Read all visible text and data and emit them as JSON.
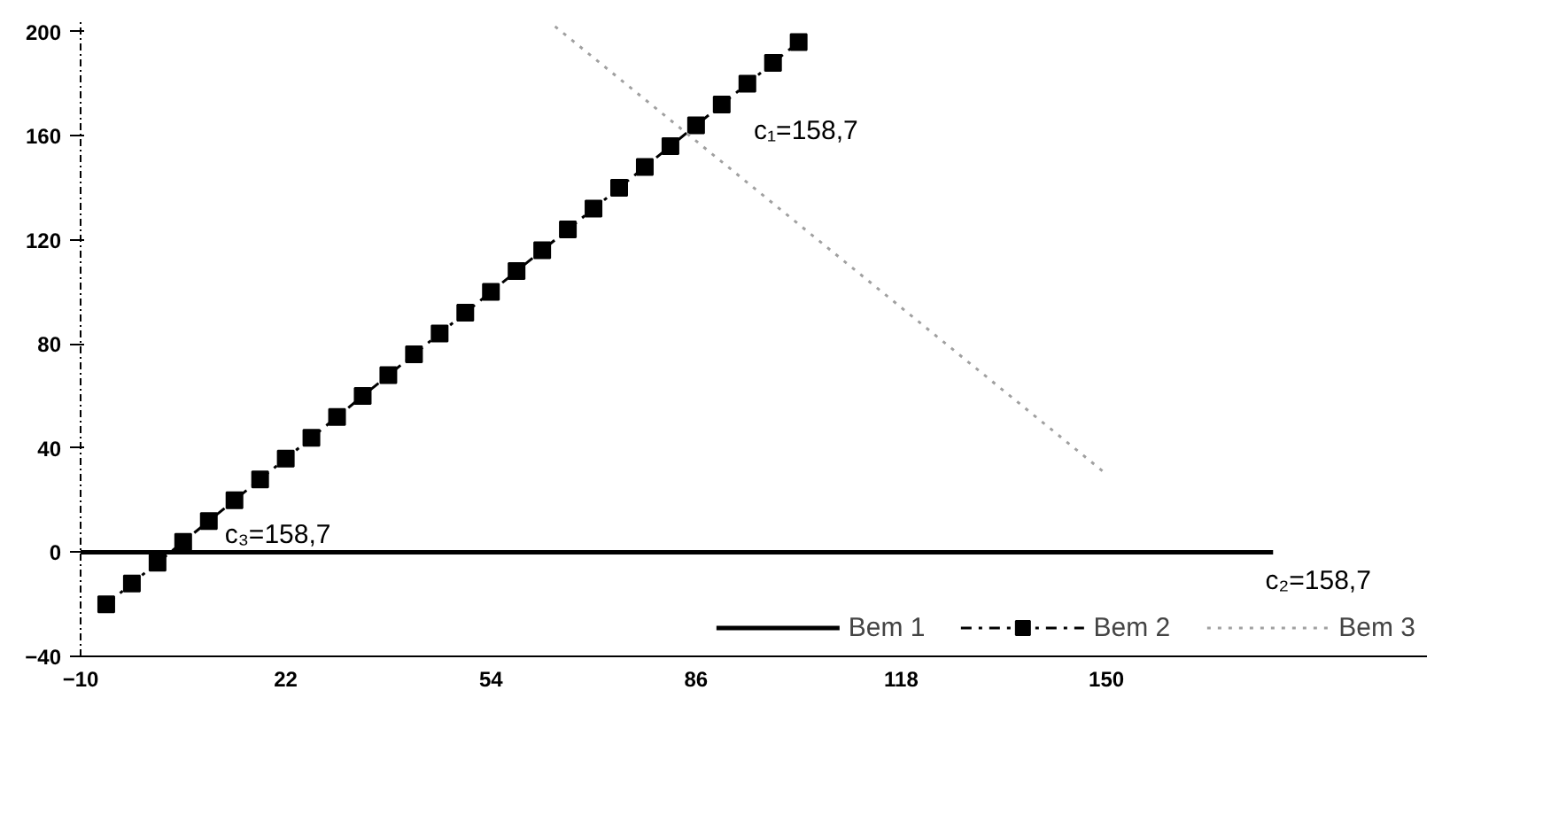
{
  "chart_data": {
    "type": "line",
    "xlim": [
      -10,
      200
    ],
    "ylim": [
      -40,
      205
    ],
    "xticks": [
      -10,
      22,
      54,
      86,
      118,
      150
    ],
    "yticks": [
      -40,
      0,
      40,
      80,
      120,
      160,
      200
    ],
    "grid": false,
    "legend": "bottom",
    "series": [
      {
        "name": "Bem 1",
        "color": "#000000",
        "line_style": "solid",
        "marker": "none",
        "x": [
          -10,
          176
        ],
        "values": [
          0,
          0
        ]
      },
      {
        "name": "Bem 2",
        "color": "#000000",
        "line_style": "dashdot",
        "marker": "square",
        "x": [
          -6,
          -2,
          2,
          6,
          10,
          14,
          18,
          22,
          26,
          30,
          34,
          38,
          42,
          46,
          50,
          54,
          58,
          62,
          66,
          70,
          74,
          78,
          82,
          86,
          90,
          94,
          98,
          102
        ],
        "values": [
          -20,
          -12,
          -4,
          4,
          12,
          20,
          28,
          36,
          44,
          52,
          60,
          68,
          76,
          84,
          92,
          100,
          108,
          116,
          124,
          132,
          140,
          148,
          156,
          164,
          172,
          180,
          188,
          196
        ]
      },
      {
        "name": "Bem 3",
        "color": "#a0a0a0",
        "line_style": "dotted",
        "marker": "none",
        "x": [
          64,
          150
        ],
        "values": [
          202,
          30
        ]
      }
    ],
    "annotations": [
      "c₁=158,7",
      "c₃=158,7",
      "c₂=158,7"
    ]
  }
}
